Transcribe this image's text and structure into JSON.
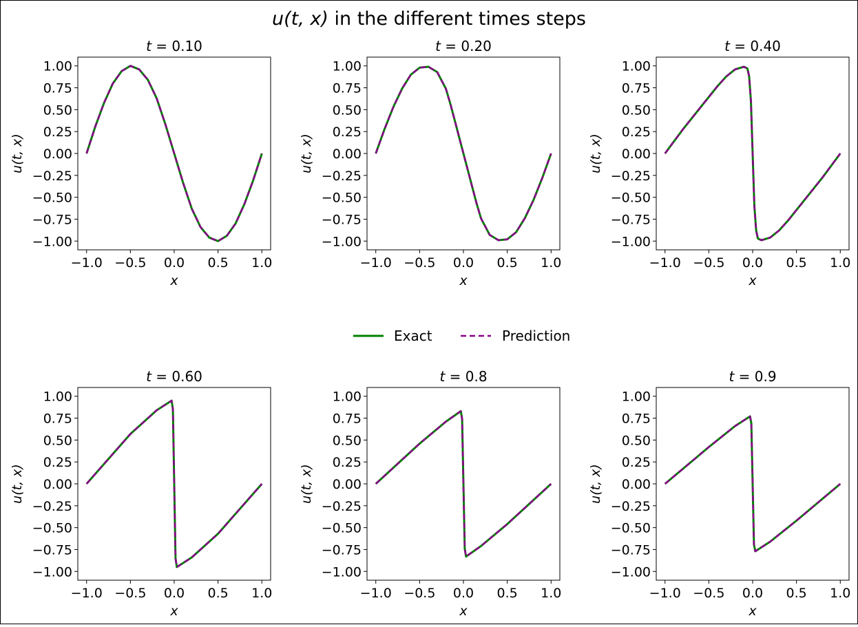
{
  "figure": {
    "title_italic": "u(t, x)",
    "title_rest": " in the different times steps"
  },
  "legend": {
    "items": [
      {
        "label": "Exact",
        "color": "#008000",
        "dash": "solid"
      },
      {
        "label": "Prediction",
        "color": "#8b008b",
        "dash": "dashed"
      }
    ]
  },
  "chart_data": [
    {
      "type": "line",
      "title_var": "t",
      "title_val": " = 0.10",
      "xlabel": "x",
      "ylabel": "u(t, x)",
      "xlim": [
        -1.1,
        1.1
      ],
      "ylim": [
        -1.1,
        1.1
      ],
      "xticks": [
        "−1.0",
        "−0.5",
        "0.0",
        "0.5",
        "1.0"
      ],
      "yticks": [
        "1.00",
        "0.75",
        "0.50",
        "0.25",
        "0.00",
        "−0.25",
        "−0.50",
        "−0.75",
        "−1.00"
      ],
      "series": [
        {
          "name": "Exact",
          "x": [
            -1.0,
            -0.9,
            -0.8,
            -0.7,
            -0.6,
            -0.5,
            -0.4,
            -0.3,
            -0.2,
            -0.1,
            0.0,
            0.1,
            0.2,
            0.3,
            0.4,
            0.5,
            0.6,
            0.7,
            0.8,
            0.9,
            1.0
          ],
          "y": [
            0.0,
            0.31,
            0.58,
            0.8,
            0.94,
            1.0,
            0.96,
            0.84,
            0.63,
            0.33,
            0.0,
            -0.33,
            -0.63,
            -0.84,
            -0.96,
            -1.0,
            -0.94,
            -0.8,
            -0.58,
            -0.31,
            0.0
          ]
        },
        {
          "name": "Prediction",
          "x": [
            -1.0,
            -0.9,
            -0.8,
            -0.7,
            -0.6,
            -0.5,
            -0.4,
            -0.3,
            -0.2,
            -0.1,
            0.0,
            0.1,
            0.2,
            0.3,
            0.4,
            0.5,
            0.6,
            0.7,
            0.8,
            0.9,
            1.0
          ],
          "y": [
            0.0,
            0.31,
            0.58,
            0.8,
            0.94,
            1.0,
            0.96,
            0.84,
            0.63,
            0.33,
            0.0,
            -0.33,
            -0.63,
            -0.84,
            -0.96,
            -1.0,
            -0.94,
            -0.8,
            -0.58,
            -0.31,
            0.0
          ]
        }
      ]
    },
    {
      "type": "line",
      "title_var": "t",
      "title_val": " = 0.20",
      "xlabel": "x",
      "ylabel": "u(t, x)",
      "xlim": [
        -1.1,
        1.1
      ],
      "ylim": [
        -1.1,
        1.1
      ],
      "xticks": [
        "−1.0",
        "−0.5",
        "0.0",
        "0.5",
        "1.0"
      ],
      "yticks": [
        "1.00",
        "0.75",
        "0.50",
        "0.25",
        "0.00",
        "−0.25",
        "−0.50",
        "−0.75",
        "−1.00"
      ],
      "series": [
        {
          "name": "Exact",
          "x": [
            -1.0,
            -0.9,
            -0.8,
            -0.7,
            -0.6,
            -0.5,
            -0.4,
            -0.3,
            -0.2,
            -0.15,
            -0.1,
            -0.05,
            0.0,
            0.05,
            0.1,
            0.15,
            0.2,
            0.3,
            0.4,
            0.5,
            0.6,
            0.7,
            0.8,
            0.9,
            1.0
          ],
          "y": [
            0.0,
            0.28,
            0.53,
            0.74,
            0.9,
            0.98,
            0.99,
            0.93,
            0.74,
            0.57,
            0.38,
            0.19,
            0.0,
            -0.19,
            -0.38,
            -0.57,
            -0.74,
            -0.93,
            -0.99,
            -0.98,
            -0.9,
            -0.74,
            -0.53,
            -0.28,
            0.0
          ]
        },
        {
          "name": "Prediction",
          "x": [
            -1.0,
            -0.9,
            -0.8,
            -0.7,
            -0.6,
            -0.5,
            -0.4,
            -0.3,
            -0.2,
            -0.15,
            -0.1,
            -0.05,
            0.0,
            0.05,
            0.1,
            0.15,
            0.2,
            0.3,
            0.4,
            0.5,
            0.6,
            0.7,
            0.8,
            0.9,
            1.0
          ],
          "y": [
            0.0,
            0.28,
            0.53,
            0.74,
            0.9,
            0.98,
            0.99,
            0.93,
            0.74,
            0.57,
            0.38,
            0.19,
            0.0,
            -0.19,
            -0.38,
            -0.57,
            -0.74,
            -0.93,
            -0.99,
            -0.98,
            -0.9,
            -0.74,
            -0.53,
            -0.28,
            0.0
          ]
        }
      ]
    },
    {
      "type": "line",
      "title_var": "t",
      "title_val": " = 0.40",
      "xlabel": "x",
      "ylabel": "u(t, x)",
      "xlim": [
        -1.1,
        1.1
      ],
      "ylim": [
        -1.1,
        1.1
      ],
      "xticks": [
        "−1.0",
        "−0.5",
        "0.0",
        "0.5",
        "1.0"
      ],
      "yticks": [
        "1.00",
        "0.75",
        "0.50",
        "0.25",
        "0.00",
        "−0.25",
        "−0.50",
        "−0.75",
        "−1.00"
      ],
      "series": [
        {
          "name": "Exact",
          "x": [
            -1.0,
            -0.8,
            -0.6,
            -0.4,
            -0.3,
            -0.2,
            -0.1,
            -0.06,
            -0.04,
            -0.02,
            0.0,
            0.02,
            0.04,
            0.06,
            0.1,
            0.2,
            0.3,
            0.4,
            0.6,
            0.8,
            1.0
          ],
          "y": [
            0.0,
            0.27,
            0.52,
            0.77,
            0.88,
            0.96,
            0.99,
            0.97,
            0.88,
            0.6,
            0.0,
            -0.6,
            -0.88,
            -0.97,
            -0.99,
            -0.96,
            -0.88,
            -0.77,
            -0.52,
            -0.27,
            0.0
          ]
        },
        {
          "name": "Prediction",
          "x": [
            -1.0,
            -0.8,
            -0.6,
            -0.4,
            -0.3,
            -0.2,
            -0.1,
            -0.06,
            -0.04,
            -0.02,
            0.0,
            0.02,
            0.04,
            0.06,
            0.1,
            0.2,
            0.3,
            0.4,
            0.6,
            0.8,
            1.0
          ],
          "y": [
            0.0,
            0.27,
            0.52,
            0.77,
            0.88,
            0.96,
            0.99,
            0.97,
            0.88,
            0.6,
            0.0,
            -0.6,
            -0.88,
            -0.97,
            -0.99,
            -0.96,
            -0.88,
            -0.77,
            -0.52,
            -0.27,
            0.0
          ]
        }
      ]
    },
    {
      "type": "line",
      "title_var": "t",
      "title_val": " = 0.60",
      "xlabel": "x",
      "ylabel": "u(t, x)",
      "xlim": [
        -1.1,
        1.1
      ],
      "ylim": [
        -1.1,
        1.1
      ],
      "xticks": [
        "−1.0",
        "−0.5",
        "0.0",
        "0.5",
        "1.0"
      ],
      "yticks": [
        "1.00",
        "0.75",
        "0.50",
        "0.25",
        "0.00",
        "−0.25",
        "−0.50",
        "−0.75",
        "−1.00"
      ],
      "series": [
        {
          "name": "Exact",
          "x": [
            -1.0,
            -0.5,
            -0.2,
            -0.03,
            -0.015,
            0.0,
            0.015,
            0.03,
            0.2,
            0.5,
            1.0
          ],
          "y": [
            0.0,
            0.57,
            0.84,
            0.95,
            0.85,
            0.0,
            -0.85,
            -0.95,
            -0.84,
            -0.57,
            0.0
          ]
        },
        {
          "name": "Prediction",
          "x": [
            -1.0,
            -0.5,
            -0.2,
            -0.03,
            -0.015,
            0.0,
            0.015,
            0.03,
            0.2,
            0.5,
            1.0
          ],
          "y": [
            0.0,
            0.57,
            0.84,
            0.95,
            0.85,
            0.0,
            -0.85,
            -0.95,
            -0.84,
            -0.57,
            0.0
          ]
        }
      ]
    },
    {
      "type": "line",
      "title_var": "t",
      "title_val": " = 0.8",
      "xlabel": "x",
      "ylabel": "u(t, x)",
      "xlim": [
        -1.1,
        1.1
      ],
      "ylim": [
        -1.1,
        1.1
      ],
      "xticks": [
        "−1.0",
        "−0.5",
        "0.0",
        "0.5",
        "1.0"
      ],
      "yticks": [
        "1.00",
        "0.75",
        "0.50",
        "0.25",
        "0.00",
        "−0.25",
        "−0.50",
        "−0.75",
        "−1.00"
      ],
      "series": [
        {
          "name": "Exact",
          "x": [
            -1.0,
            -0.5,
            -0.2,
            -0.03,
            -0.015,
            0.0,
            0.015,
            0.03,
            0.2,
            0.5,
            1.0
          ],
          "y": [
            0.0,
            0.46,
            0.71,
            0.83,
            0.74,
            0.0,
            -0.74,
            -0.83,
            -0.71,
            -0.46,
            0.0
          ]
        },
        {
          "name": "Prediction",
          "x": [
            -1.0,
            -0.5,
            -0.2,
            -0.03,
            -0.015,
            0.0,
            0.015,
            0.03,
            0.2,
            0.5,
            1.0
          ],
          "y": [
            0.0,
            0.46,
            0.71,
            0.83,
            0.74,
            0.0,
            -0.74,
            -0.83,
            -0.71,
            -0.46,
            0.0
          ]
        }
      ]
    },
    {
      "type": "line",
      "title_var": "t",
      "title_val": " = 0.9",
      "xlabel": "x",
      "ylabel": "u(t, x)",
      "xlim": [
        -1.1,
        1.1
      ],
      "ylim": [
        -1.1,
        1.1
      ],
      "xticks": [
        "−1.0",
        "−0.5",
        "0.0",
        "0.5",
        "1.0"
      ],
      "yticks": [
        "1.00",
        "0.75",
        "0.50",
        "0.25",
        "0.00",
        "−0.25",
        "−0.50",
        "−0.75",
        "−1.00"
      ],
      "series": [
        {
          "name": "Exact",
          "x": [
            -1.0,
            -0.5,
            -0.2,
            -0.03,
            -0.015,
            0.0,
            0.015,
            0.03,
            0.2,
            0.5,
            1.0
          ],
          "y": [
            0.0,
            0.42,
            0.66,
            0.77,
            0.69,
            0.0,
            -0.69,
            -0.77,
            -0.66,
            -0.42,
            0.0
          ]
        },
        {
          "name": "Prediction",
          "x": [
            -1.0,
            -0.5,
            -0.2,
            -0.03,
            -0.015,
            0.0,
            0.015,
            0.03,
            0.2,
            0.5,
            1.0
          ],
          "y": [
            0.0,
            0.42,
            0.66,
            0.77,
            0.69,
            0.0,
            -0.69,
            -0.77,
            -0.66,
            -0.42,
            0.0
          ]
        }
      ]
    }
  ]
}
